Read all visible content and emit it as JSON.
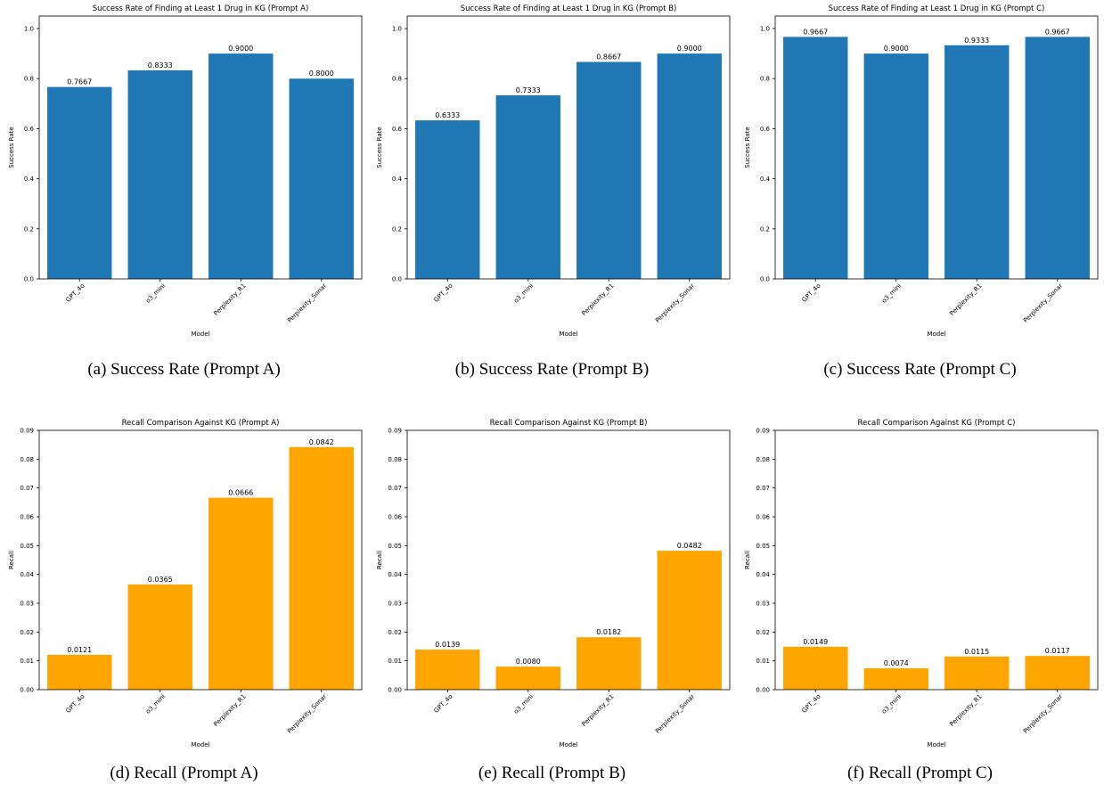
{
  "figure": {
    "captions": [
      "(a) Success Rate (Prompt A)",
      "(b) Success Rate (Prompt B)",
      "(c) Success Rate (Prompt C)",
      "(d) Recall (Prompt A)",
      "(e) Recall (Prompt B)",
      "(f) Recall (Prompt C)"
    ]
  },
  "chart_data": [
    {
      "type": "bar",
      "title": "Success Rate of Finding at Least 1 Drug in KG (Prompt A)",
      "xlabel": "Model",
      "ylabel": "Success Rate",
      "categories": [
        "GPT_4o",
        "o3_mini",
        "Perplexity_R1",
        "Perplexity_Sonar"
      ],
      "values": [
        0.7667,
        0.8333,
        0.9,
        0.8
      ],
      "data_labels": [
        "0.7667",
        "0.8333",
        "0.9000",
        "0.8000"
      ],
      "ylim": [
        0,
        1.05
      ],
      "yticks": [
        0,
        0.2,
        0.4,
        0.6,
        0.8,
        1.0
      ],
      "ytick_labels": [
        "0.0",
        "0.2",
        "0.4",
        "0.6",
        "0.8",
        "1.0"
      ],
      "color": "#1f77b4",
      "grid": false
    },
    {
      "type": "bar",
      "title": "Success Rate of Finding at Least 1 Drug in KG (Prompt B)",
      "xlabel": "Model",
      "ylabel": "Success Rate",
      "categories": [
        "GPT_4o",
        "o3_mini",
        "Perplexity_R1",
        "Perplexity_Sonar"
      ],
      "values": [
        0.6333,
        0.7333,
        0.8667,
        0.9
      ],
      "data_labels": [
        "0.6333",
        "0.7333",
        "0.8667",
        "0.9000"
      ],
      "ylim": [
        0,
        1.05
      ],
      "yticks": [
        0,
        0.2,
        0.4,
        0.6,
        0.8,
        1.0
      ],
      "ytick_labels": [
        "0.0",
        "0.2",
        "0.4",
        "0.6",
        "0.8",
        "1.0"
      ],
      "color": "#1f77b4",
      "grid": false
    },
    {
      "type": "bar",
      "title": "Success Rate of Finding at Least 1 Drug in KG (Prompt C)",
      "xlabel": "Model",
      "ylabel": "Success Rate",
      "categories": [
        "GPT_4o",
        "o3_mini",
        "Perplexity_R1",
        "Perplexity_Sonar"
      ],
      "values": [
        0.9667,
        0.9,
        0.9333,
        0.9667
      ],
      "data_labels": [
        "0.9667",
        "0.9000",
        "0.9333",
        "0.9667"
      ],
      "ylim": [
        0,
        1.05
      ],
      "yticks": [
        0,
        0.2,
        0.4,
        0.6,
        0.8,
        1.0
      ],
      "ytick_labels": [
        "0.0",
        "0.2",
        "0.4",
        "0.6",
        "0.8",
        "1.0"
      ],
      "color": "#1f77b4",
      "grid": false
    },
    {
      "type": "bar",
      "title": "Recall Comparison Against KG (Prompt A)",
      "xlabel": "Model",
      "ylabel": "Recall",
      "categories": [
        "GPT_4o",
        "o3_mini",
        "Perplexity_R1",
        "Perplexity_Sonar"
      ],
      "values": [
        0.0121,
        0.0365,
        0.0666,
        0.0842
      ],
      "data_labels": [
        "0.0121",
        "0.0365",
        "0.0666",
        "0.0842"
      ],
      "ylim": [
        0,
        0.09
      ],
      "yticks": [
        0,
        0.01,
        0.02,
        0.03,
        0.04,
        0.05,
        0.06,
        0.07,
        0.08,
        0.09
      ],
      "ytick_labels": [
        "0.00",
        "0.01",
        "0.02",
        "0.03",
        "0.04",
        "0.05",
        "0.06",
        "0.07",
        "0.08",
        "0.09"
      ],
      "color": "#ffa500",
      "grid": false
    },
    {
      "type": "bar",
      "title": "Recall Comparison Against KG (Prompt B)",
      "xlabel": "Model",
      "ylabel": "Recall",
      "categories": [
        "GPT_4o",
        "o3_mini",
        "Perplexity_R1",
        "Perplexity_Sonar"
      ],
      "values": [
        0.0139,
        0.008,
        0.0182,
        0.0482
      ],
      "data_labels": [
        "0.0139",
        "0.0080",
        "0.0182",
        "0.0482"
      ],
      "ylim": [
        0,
        0.09
      ],
      "yticks": [
        0,
        0.01,
        0.02,
        0.03,
        0.04,
        0.05,
        0.06,
        0.07,
        0.08,
        0.09
      ],
      "ytick_labels": [
        "0.00",
        "0.01",
        "0.02",
        "0.03",
        "0.04",
        "0.05",
        "0.06",
        "0.07",
        "0.08",
        "0.09"
      ],
      "color": "#ffa500",
      "grid": false
    },
    {
      "type": "bar",
      "title": "Recall Comparison Against KG (Prompt C)",
      "xlabel": "Model",
      "ylabel": "Recall",
      "categories": [
        "GPT_4o",
        "o3_mini",
        "Perplexity_R1",
        "Perplexity_Sonar"
      ],
      "values": [
        0.0149,
        0.0074,
        0.0115,
        0.0117
      ],
      "data_labels": [
        "0.0149",
        "0.0074",
        "0.0115",
        "0.0117"
      ],
      "ylim": [
        0,
        0.09
      ],
      "yticks": [
        0,
        0.01,
        0.02,
        0.03,
        0.04,
        0.05,
        0.06,
        0.07,
        0.08,
        0.09
      ],
      "ytick_labels": [
        "0.00",
        "0.01",
        "0.02",
        "0.03",
        "0.04",
        "0.05",
        "0.06",
        "0.07",
        "0.08",
        "0.09"
      ],
      "color": "#ffa500",
      "grid": false
    }
  ]
}
